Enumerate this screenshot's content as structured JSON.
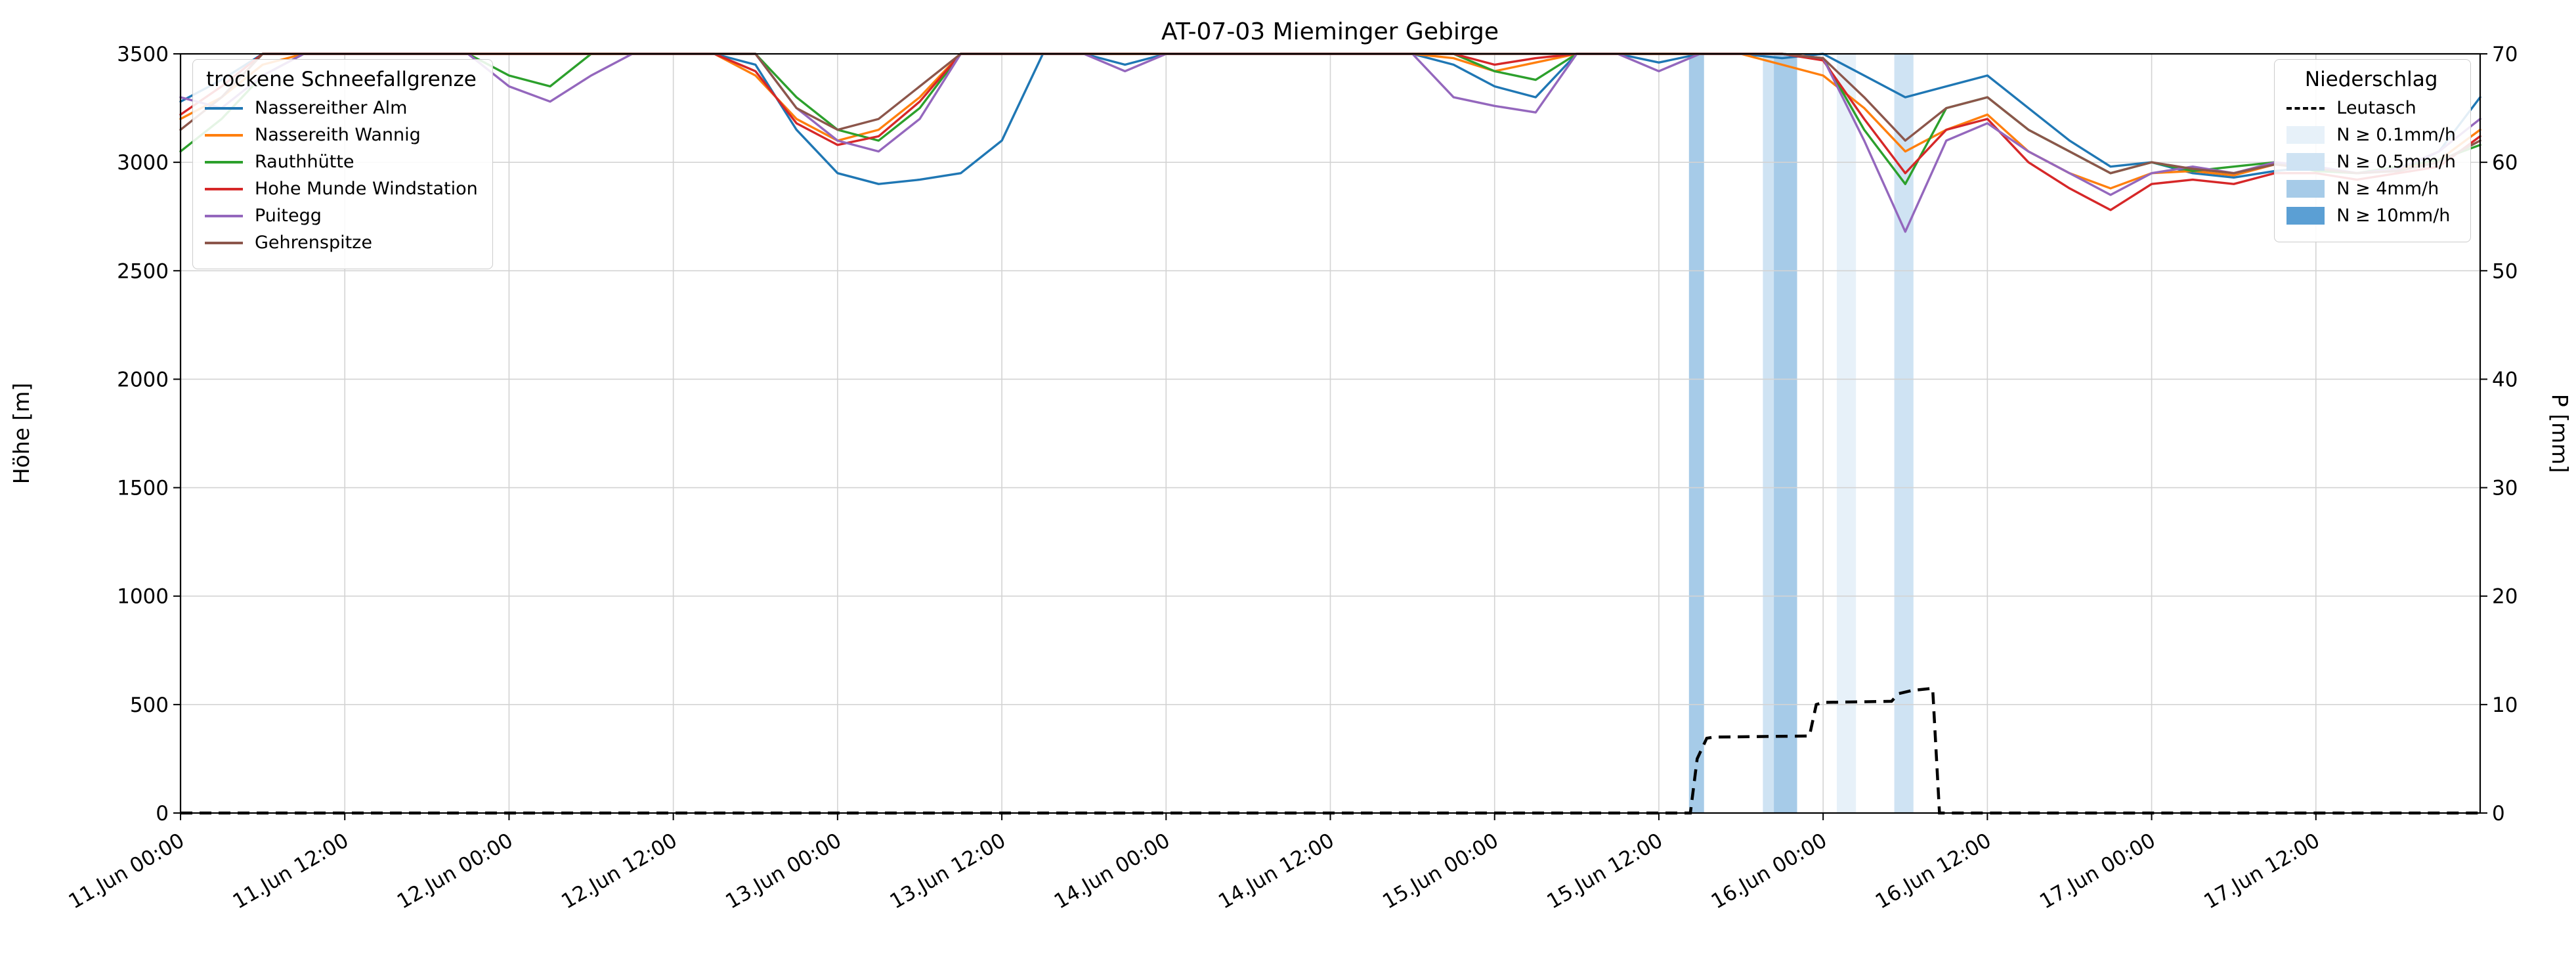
{
  "title": "AT-07-03 Mieminger Gebirge",
  "axes": {
    "y_left": {
      "label": "Höhe [m]",
      "min": 0,
      "max": 3500,
      "tick_step": 500,
      "ticks": [
        0,
        500,
        1000,
        1500,
        2000,
        2500,
        3000,
        3500
      ]
    },
    "y_right": {
      "label": "P [mm]",
      "min": 0,
      "max": 70,
      "tick_step": 10,
      "ticks": [
        0,
        10,
        20,
        30,
        40,
        50,
        60,
        70
      ]
    },
    "x": {
      "min_hour": 0,
      "max_hour": 168,
      "tick_hours": [
        0,
        12,
        24,
        36,
        48,
        60,
        72,
        84,
        96,
        108,
        120,
        132,
        144,
        156
      ],
      "tick_labels": [
        "11.Jun 00:00",
        "11.Jun 12:00",
        "12.Jun 00:00",
        "12.Jun 12:00",
        "13.Jun 00:00",
        "13.Jun 12:00",
        "14.Jun 00:00",
        "14.Jun 12:00",
        "15.Jun 00:00",
        "15.Jun 12:00",
        "16.Jun 00:00",
        "16.Jun 12:00",
        "17.Jun 00:00",
        "17.Jun 12:00"
      ]
    }
  },
  "legend_snowline": {
    "title": "trockene Schneefallgrenze",
    "position": "upper left",
    "entries": [
      {
        "label": "Nassereither Alm",
        "color": "#1f77b4"
      },
      {
        "label": "Nassereith Wannig",
        "color": "#ff7f0e"
      },
      {
        "label": "Rauthhütte",
        "color": "#2ca02c"
      },
      {
        "label": "Hohe Munde Windstation",
        "color": "#d62728"
      },
      {
        "label": "Puitegg",
        "color": "#9467bd"
      },
      {
        "label": "Gehrenspitze",
        "color": "#8c564b"
      }
    ]
  },
  "legend_precip": {
    "title": "Niederschlag",
    "position": "upper right",
    "entries": [
      {
        "label": "Leutasch",
        "swatch": "dashed",
        "color": "#000000"
      },
      {
        "label": "N ≥ 0.1mm/h",
        "swatch": "patch",
        "color": "#e7f1f9"
      },
      {
        "label": "N ≥ 0.5mm/h",
        "swatch": "patch",
        "color": "#cfe3f3"
      },
      {
        "label": "N ≥ 4mm/h",
        "swatch": "patch",
        "color": "#a6cbe8"
      },
      {
        "label": "N ≥ 10mm/h",
        "swatch": "patch",
        "color": "#5b9fd4"
      }
    ]
  },
  "chart_data": {
    "type": "line",
    "grid": true,
    "ylim_left": [
      0,
      3500
    ],
    "ylim_right": [
      0,
      70
    ],
    "x_unit": "hours since 11 Jun 00:00",
    "x_hours": [
      0,
      3,
      6,
      9,
      12,
      15,
      18,
      21,
      24,
      27,
      30,
      33,
      36,
      39,
      42,
      45,
      48,
      51,
      54,
      57,
      60,
      63,
      66,
      69,
      72,
      75,
      78,
      81,
      84,
      87,
      90,
      93,
      96,
      99,
      102,
      105,
      108,
      111,
      114,
      117,
      120,
      123,
      126,
      129,
      132,
      135,
      138,
      141,
      144,
      147,
      150,
      153,
      156,
      159,
      162,
      165,
      168
    ],
    "series": [
      {
        "name": "Nassereither Alm",
        "color": "#1f77b4",
        "values": [
          3280,
          3380,
          3500,
          3500,
          3500,
          3500,
          3500,
          3500,
          3500,
          3500,
          3500,
          3500,
          3500,
          3500,
          3450,
          3150,
          2950,
          2900,
          2920,
          2950,
          3100,
          3500,
          3500,
          3450,
          3500,
          3500,
          3500,
          3500,
          3500,
          3500,
          3500,
          3450,
          3350,
          3300,
          3500,
          3500,
          3460,
          3500,
          3500,
          3480,
          3500,
          3400,
          3300,
          3350,
          3400,
          3250,
          3100,
          2980,
          3000,
          2950,
          2930,
          2960,
          2980,
          2950,
          2960,
          3050,
          3300
        ]
      },
      {
        "name": "Nassereith Wannig",
        "color": "#ff7f0e",
        "values": [
          3200,
          3300,
          3450,
          3500,
          3500,
          3500,
          3500,
          3500,
          3500,
          3500,
          3500,
          3500,
          3500,
          3500,
          3400,
          3200,
          3100,
          3150,
          3300,
          3500,
          3500,
          3500,
          3500,
          3500,
          3500,
          3500,
          3500,
          3500,
          3500,
          3500,
          3500,
          3480,
          3420,
          3460,
          3500,
          3500,
          3500,
          3500,
          3500,
          3450,
          3400,
          3250,
          3050,
          3150,
          3220,
          3050,
          2950,
          2880,
          2950,
          2960,
          2940,
          2990,
          2970,
          2950,
          2970,
          3010,
          3150
        ]
      },
      {
        "name": "Rauthhütte",
        "color": "#2ca02c",
        "values": [
          3050,
          3200,
          3400,
          3500,
          3500,
          3500,
          3500,
          3500,
          3400,
          3350,
          3500,
          3500,
          3500,
          3500,
          3500,
          3300,
          3150,
          3100,
          3250,
          3500,
          3500,
          3500,
          3500,
          3500,
          3500,
          3500,
          3500,
          3500,
          3500,
          3500,
          3500,
          3500,
          3420,
          3380,
          3500,
          3500,
          3500,
          3500,
          3500,
          3500,
          3480,
          3150,
          2900,
          3250,
          3300,
          3150,
          3050,
          2950,
          3000,
          2960,
          2980,
          3000,
          2960,
          2950,
          2980,
          3010,
          3080
        ]
      },
      {
        "name": "Hohe Munde Windstation",
        "color": "#d62728",
        "values": [
          3220,
          3350,
          3500,
          3500,
          3500,
          3500,
          3500,
          3500,
          3500,
          3500,
          3500,
          3500,
          3500,
          3500,
          3420,
          3180,
          3080,
          3120,
          3280,
          3500,
          3500,
          3500,
          3500,
          3500,
          3500,
          3500,
          3500,
          3500,
          3500,
          3500,
          3500,
          3500,
          3450,
          3480,
          3500,
          3500,
          3500,
          3500,
          3500,
          3500,
          3470,
          3200,
          2950,
          3150,
          3200,
          3000,
          2880,
          2780,
          2900,
          2920,
          2900,
          2950,
          2950,
          2920,
          2950,
          2980,
          3120
        ]
      },
      {
        "name": "Puitegg",
        "color": "#9467bd",
        "values": [
          3300,
          3250,
          3400,
          3500,
          3500,
          3500,
          3500,
          3500,
          3350,
          3280,
          3400,
          3500,
          3500,
          3500,
          3500,
          3250,
          3100,
          3050,
          3200,
          3500,
          3500,
          3500,
          3500,
          3420,
          3500,
          3500,
          3500,
          3500,
          3500,
          3500,
          3500,
          3300,
          3260,
          3230,
          3500,
          3500,
          3420,
          3500,
          3500,
          3500,
          3480,
          3100,
          2680,
          3100,
          3180,
          3050,
          2950,
          2850,
          2950,
          2980,
          2950,
          3000,
          2980,
          2950,
          2970,
          3050,
          3200
        ]
      },
      {
        "name": "Gehrenspitze",
        "color": "#8c564b",
        "values": [
          3150,
          3300,
          3500,
          3500,
          3500,
          3500,
          3500,
          3500,
          3500,
          3500,
          3500,
          3500,
          3500,
          3500,
          3500,
          3250,
          3150,
          3200,
          3350,
          3500,
          3500,
          3500,
          3500,
          3500,
          3500,
          3500,
          3500,
          3500,
          3500,
          3500,
          3500,
          3500,
          3500,
          3500,
          3500,
          3500,
          3500,
          3500,
          3500,
          3500,
          3480,
          3300,
          3100,
          3250,
          3300,
          3150,
          3050,
          2950,
          3000,
          2970,
          2950,
          2990,
          2970,
          2950,
          2960,
          3000,
          3100
        ]
      }
    ],
    "precipitation_line": {
      "name": "Leutasch",
      "axis": "right",
      "style": "dashed",
      "color": "#000000",
      "x_hours": [
        0,
        109,
        110.3,
        110.8,
        111.5,
        112,
        119,
        119.5,
        120,
        125,
        125.5,
        126.5,
        128,
        128.5,
        168
      ],
      "values_mm": [
        0,
        0,
        0,
        5,
        6.9,
        7,
        7.1,
        10,
        10.2,
        10.3,
        11,
        11.3,
        11.5,
        0,
        0
      ]
    },
    "precip_spans": [
      {
        "start_hour": 110.2,
        "end_hour": 111.3,
        "level": "N ≥ 4mm/h",
        "color": "#a6cbe8"
      },
      {
        "start_hour": 115.6,
        "end_hour": 116.4,
        "level": "N ≥ 0.5mm/h",
        "color": "#cfe3f3"
      },
      {
        "start_hour": 116.4,
        "end_hour": 118.1,
        "level": "N ≥ 4mm/h",
        "color": "#a6cbe8"
      },
      {
        "start_hour": 121.0,
        "end_hour": 122.4,
        "level": "N ≥ 0.1mm/h",
        "color": "#e7f1f9"
      },
      {
        "start_hour": 125.2,
        "end_hour": 126.6,
        "level": "N ≥ 0.5mm/h",
        "color": "#cfe3f3"
      }
    ],
    "colors": {
      "grid": "#d3d3d3",
      "spine": "#000000",
      "background": "#ffffff"
    }
  }
}
